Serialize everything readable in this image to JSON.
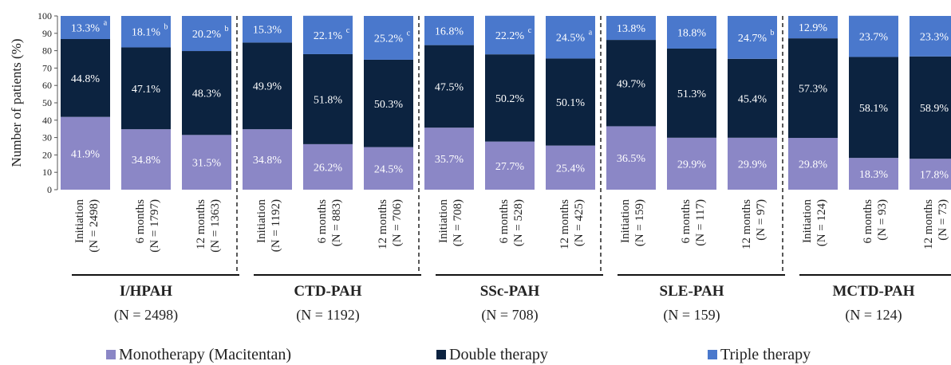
{
  "chart_data": {
    "type": "bar",
    "stacked": true,
    "ylabel": "Number of patients (%)",
    "ylim": [
      0,
      100
    ],
    "yticks": [
      0,
      10,
      20,
      30,
      40,
      50,
      60,
      70,
      80,
      90,
      100
    ],
    "grid": false,
    "legend_placement": "bottom",
    "series": [
      {
        "name": "Monotherapy (Macitentan)",
        "color": "#8b87c6"
      },
      {
        "name": "Double therapy",
        "color": "#0c2340"
      },
      {
        "name": "Triple therapy",
        "color": "#4a78cc"
      }
    ],
    "groups": [
      {
        "name": "I/HPAH",
        "n_label": "(N = 2498)",
        "bars": [
          {
            "line1": "Initiation",
            "line2": "(N = 2498)",
            "values": [
              41.9,
              44.8,
              13.3
            ],
            "labels": [
              "41.9%",
              "44.8%",
              "13.3%"
            ],
            "sup": "a"
          },
          {
            "line1": "6 months",
            "line2": "(N = 1797)",
            "values": [
              34.8,
              47.1,
              18.1
            ],
            "labels": [
              "34.8%",
              "47.1%",
              "18.1%"
            ],
            "sup": "b"
          },
          {
            "line1": "12 months",
            "line2": "(N = 1363)",
            "values": [
              31.5,
              48.3,
              20.2
            ],
            "labels": [
              "31.5%",
              "48.3%",
              "20.2%"
            ],
            "sup": "b"
          }
        ]
      },
      {
        "name": "CTD-PAH",
        "n_label": "(N = 1192)",
        "bars": [
          {
            "line1": "Initiation",
            "line2": "(N = 1192)",
            "values": [
              34.8,
              49.9,
              15.3
            ],
            "labels": [
              "34.8%",
              "49.9%",
              "15.3%"
            ],
            "sup": ""
          },
          {
            "line1": "6 months",
            "line2": "(N = 883)",
            "values": [
              26.2,
              51.8,
              22.1
            ],
            "labels": [
              "26.2%",
              "51.8%",
              "22.1%"
            ],
            "sup": "c"
          },
          {
            "line1": "12 months",
            "line2": "(N = 706)",
            "values": [
              24.5,
              50.3,
              25.2
            ],
            "labels": [
              "24.5%",
              "50.3%",
              "25.2%"
            ],
            "sup": "c"
          }
        ]
      },
      {
        "name": "SSc-PAH",
        "n_label": "(N = 708)",
        "bars": [
          {
            "line1": "Initiation",
            "line2": "(N = 708)",
            "values": [
              35.7,
              47.5,
              16.8
            ],
            "labels": [
              "35.7%",
              "47.5%",
              "16.8%"
            ],
            "sup": ""
          },
          {
            "line1": "6 months",
            "line2": "(N = 528)",
            "values": [
              27.7,
              50.2,
              22.2
            ],
            "labels": [
              "27.7%",
              "50.2%",
              "22.2%"
            ],
            "sup": "c"
          },
          {
            "line1": "12 months",
            "line2": "(N = 425)",
            "values": [
              25.4,
              50.1,
              24.5
            ],
            "labels": [
              "25.4%",
              "50.1%",
              "24.5%"
            ],
            "sup": "a"
          }
        ]
      },
      {
        "name": "SLE-PAH",
        "n_label": "(N = 159)",
        "bars": [
          {
            "line1": "Initiation",
            "line2": "(N = 159)",
            "values": [
              36.5,
              49.7,
              13.8
            ],
            "labels": [
              "36.5%",
              "49.7%",
              "13.8%"
            ],
            "sup": ""
          },
          {
            "line1": "6 months",
            "line2": "(N = 117)",
            "values": [
              29.9,
              51.3,
              18.8
            ],
            "labels": [
              "29.9%",
              "51.3%",
              "18.8%"
            ],
            "sup": ""
          },
          {
            "line1": "12 months",
            "line2": "(N = 97)",
            "values": [
              29.9,
              45.4,
              24.7
            ],
            "labels": [
              "29.9%",
              "45.4%",
              "24.7%"
            ],
            "sup": "b"
          }
        ]
      },
      {
        "name": "MCTD-PAH",
        "n_label": "(N = 124)",
        "bars": [
          {
            "line1": "Initiation",
            "line2": "(N = 124)",
            "values": [
              29.8,
              57.3,
              12.9
            ],
            "labels": [
              "29.8%",
              "57.3%",
              "12.9%"
            ],
            "sup": ""
          },
          {
            "line1": "6 months",
            "line2": "(N = 93)",
            "values": [
              18.3,
              58.1,
              23.7
            ],
            "labels": [
              "18.3%",
              "58.1%",
              "23.7%"
            ],
            "sup": ""
          },
          {
            "line1": "12 months",
            "line2": "(N = 73)",
            "values": [
              17.8,
              58.9,
              23.3
            ],
            "labels": [
              "17.8%",
              "58.9%",
              "23.3%"
            ],
            "sup": ""
          }
        ]
      }
    ]
  }
}
